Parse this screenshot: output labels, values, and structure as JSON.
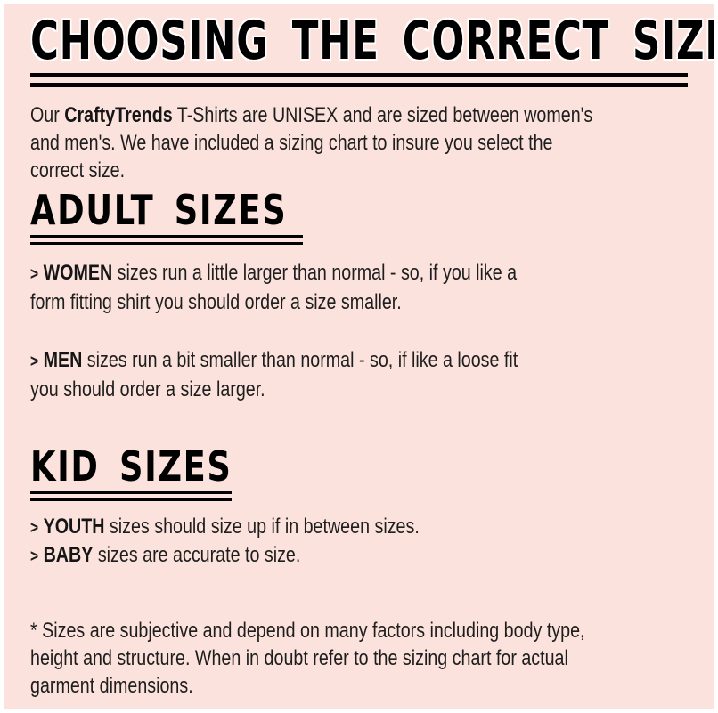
{
  "colors": {
    "background": "#fce2dc",
    "text": "#1e1e1e",
    "heading": "#000000",
    "halo": "#ffffff"
  },
  "title": "CHOOSING THE CORRECT SIZE",
  "intro": {
    "prefix": "Our ",
    "brand": "CraftyTrends",
    "rest": " T-Shirts are UNISEX and are sized between women's\nand men's.  We have included a sizing chart to insure you select the\ncorrect size."
  },
  "adult_section": {
    "heading": "ADULT SIZES",
    "items": [
      {
        "bullet": ">",
        "keyword": "WOMEN",
        "text": " sizes run a little larger than normal - so, if you like a\nform fitting shirt you should order a size smaller."
      },
      {
        "bullet": ">",
        "keyword": "MEN",
        "text": " sizes run a bit smaller than normal - so, if like a loose fit\nyou should order a size larger."
      }
    ]
  },
  "kid_section": {
    "heading": "KID SIZES",
    "items": [
      {
        "bullet": ">",
        "keyword": "YOUTH",
        "text": " sizes should size up if in between sizes."
      },
      {
        "bullet": ">",
        "keyword": "BABY",
        "text": " sizes are accurate to size."
      }
    ]
  },
  "footnote": "* Sizes are subjective and depend on many factors including body type,\nheight and structure.  When in doubt refer to the sizing chart for actual\ngarment dimensions."
}
